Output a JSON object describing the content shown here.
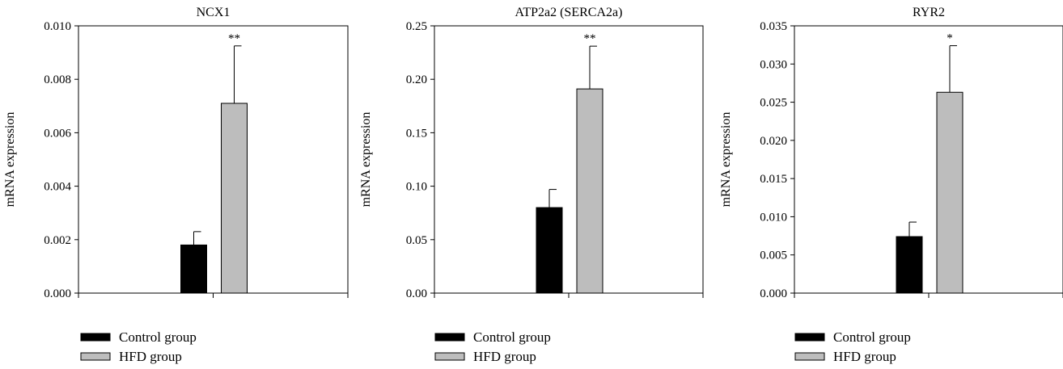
{
  "chart_data": [
    {
      "type": "bar",
      "title": "NCX1",
      "ylabel": "mRNA expression",
      "xlabel": "",
      "ylim": [
        0,
        0.01
      ],
      "yticks": [
        "0.000",
        "0.002",
        "0.004",
        "0.006",
        "0.008",
        "0.010"
      ],
      "series": [
        {
          "name": "Control group",
          "color": "#000000",
          "value": 0.0018,
          "error": 0.0005,
          "significance": ""
        },
        {
          "name": "HFD group",
          "color": "#bdbdbd",
          "value": 0.0071,
          "error": 0.00215,
          "significance": "**"
        }
      ]
    },
    {
      "type": "bar",
      "title": "ATP2a2 (SERCA2a)",
      "ylabel": "mRNA expression",
      "xlabel": "",
      "ylim": [
        0,
        0.25
      ],
      "yticks": [
        "0.00",
        "0.05",
        "0.10",
        "0.15",
        "0.20",
        "0.25"
      ],
      "series": [
        {
          "name": "Control group",
          "color": "#000000",
          "value": 0.08,
          "error": 0.017,
          "significance": ""
        },
        {
          "name": "HFD group",
          "color": "#bdbdbd",
          "value": 0.191,
          "error": 0.04,
          "significance": "**"
        }
      ]
    },
    {
      "type": "bar",
      "title": "RYR2",
      "ylabel": "mRNA expression",
      "xlabel": "",
      "ylim": [
        0,
        0.035
      ],
      "yticks": [
        "0.000",
        "0.005",
        "0.010",
        "0.015",
        "0.020",
        "0.025",
        "0.030",
        "0.035"
      ],
      "series": [
        {
          "name": "Control group",
          "color": "#000000",
          "value": 0.0074,
          "error": 0.0019,
          "significance": ""
        },
        {
          "name": "HFD group",
          "color": "#bdbdbd",
          "value": 0.0263,
          "error": 0.0061,
          "significance": "*"
        }
      ]
    }
  ],
  "legend": [
    {
      "label": "Control group",
      "color": "#000000"
    },
    {
      "label": "HFD group",
      "color": "#bdbdbd"
    }
  ]
}
